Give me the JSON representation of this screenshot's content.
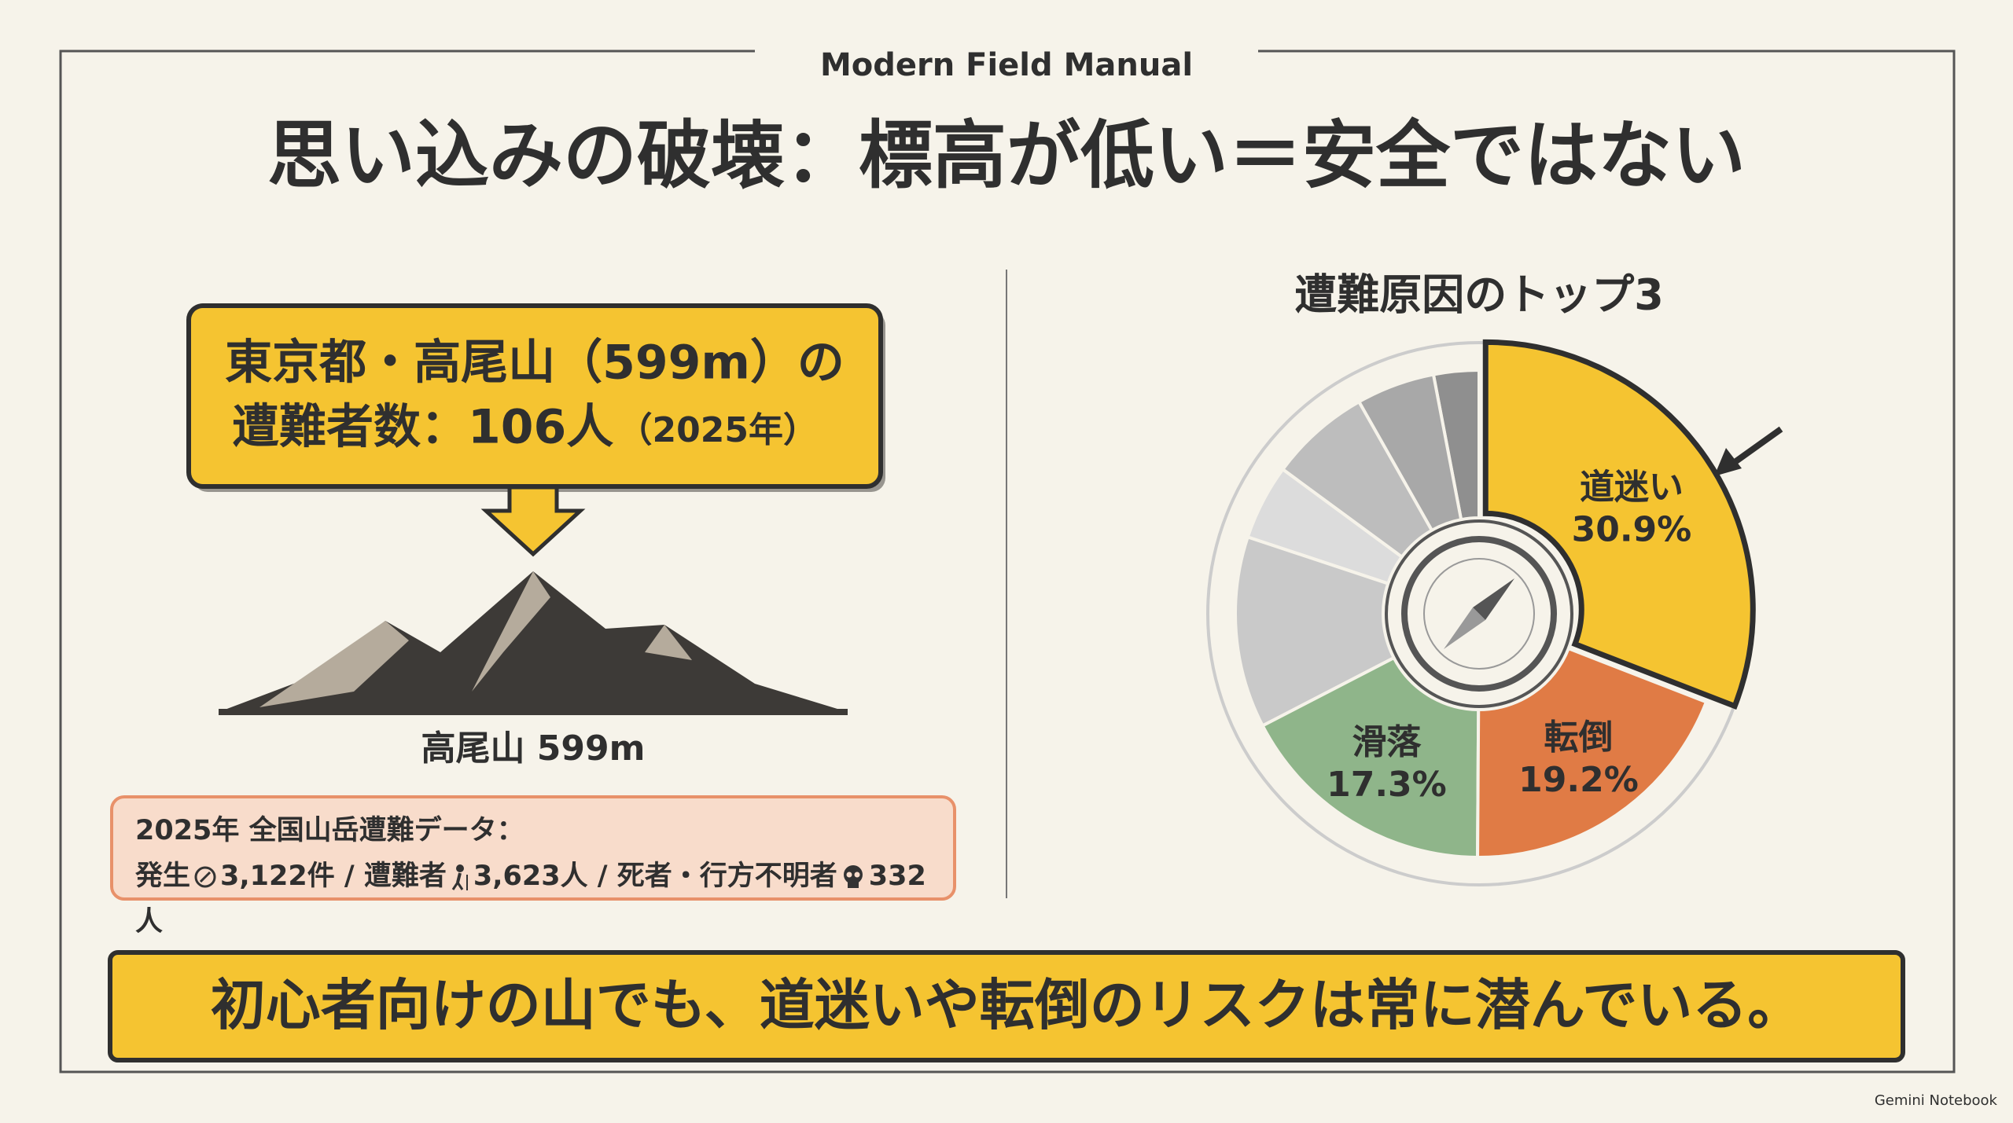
{
  "header": {
    "brand": "Modern Field Manual",
    "title": "思い込みの破壊：標高が低い＝安全ではない"
  },
  "callout": {
    "line1": "東京都・高尾山（599m）の",
    "line2": "遭難者数：106人",
    "line2_note": "（2025年）"
  },
  "mountain": {
    "label": "高尾山 599m"
  },
  "stats": {
    "heading": "2025年 全国山岳遭難データ：",
    "parts": [
      "発生",
      "3,122件",
      "/ 遭難者",
      "3,623人",
      "/ 死者・行方不明者",
      "332人"
    ]
  },
  "chart_data": {
    "type": "pie",
    "title": "遭難原因のトップ3",
    "categories": [
      "道迷い",
      "転倒",
      "滑落",
      null,
      null,
      null,
      null,
      null
    ],
    "values": [
      30.9,
      19.2,
      17.3,
      12.7,
      5.0,
      6.7,
      5.2,
      3.0
    ],
    "value_labels": [
      "30.9%",
      "19.2%",
      "17.3%",
      null,
      null,
      null,
      null,
      null
    ],
    "colors": [
      "#f5c431",
      "#e07b45",
      "#8fb58a",
      "#c9c9c9",
      "#dcdcdc",
      "#bdbdbd",
      "#a8a8a8",
      "#8f8f8f"
    ]
  },
  "footer": {
    "message": "初心者向けの山でも、道迷いや転倒のリスクは常に潜んでいる。"
  },
  "watermark": "Gemini Notebook"
}
